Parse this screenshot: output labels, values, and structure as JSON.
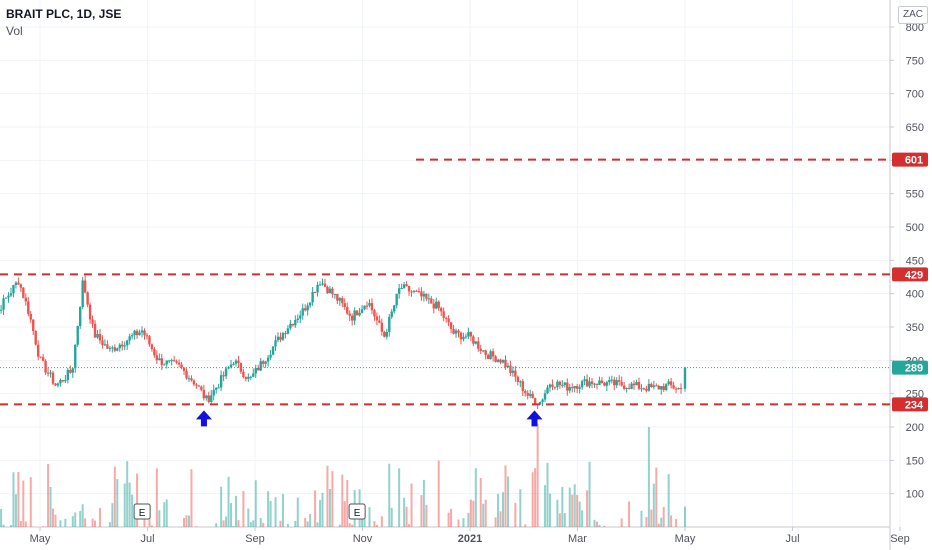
{
  "header": {
    "title": "BRAIT PLC, 1D, JSE",
    "indicator": "Vol",
    "currency": "ZAC"
  },
  "colors": {
    "up": "#26a69a",
    "down": "#ef5350",
    "level_line": "#d32f2f",
    "last_price": "#26a69a",
    "arrow": "#1010e0",
    "grid": "#f0f3fa",
    "axis_text": "#50535e"
  },
  "chart_data": {
    "type": "candlestick",
    "symbol": "BRAIT PLC",
    "interval": "1D",
    "exchange": "JSE",
    "ylim": [
      40,
      820
    ],
    "y_ticks": [
      100,
      150,
      200,
      250,
      300,
      350,
      400,
      450,
      500,
      550,
      600,
      650,
      700,
      750,
      800
    ],
    "x_ticks": [
      "May",
      "Jul",
      "Sep",
      "Nov",
      "2021",
      "Mar",
      "May",
      "Jul",
      "Sep"
    ],
    "levels": [
      {
        "label": "601",
        "value": 601
      },
      {
        "label": "429",
        "value": 429
      },
      {
        "label": "234",
        "value": 234
      }
    ],
    "last_price": {
      "label": "289",
      "value": 289
    },
    "price_path": [
      {
        "month": 4.0,
        "price": 345
      },
      {
        "month": 4.3,
        "price": 385
      },
      {
        "month": 4.6,
        "price": 420
      },
      {
        "month": 4.8,
        "price": 370
      },
      {
        "month": 5.0,
        "price": 300
      },
      {
        "month": 5.3,
        "price": 262
      },
      {
        "month": 5.6,
        "price": 285
      },
      {
        "month": 5.8,
        "price": 420
      },
      {
        "month": 6.0,
        "price": 340
      },
      {
        "month": 6.3,
        "price": 315
      },
      {
        "month": 6.6,
        "price": 330
      },
      {
        "month": 6.9,
        "price": 345
      },
      {
        "month": 7.2,
        "price": 300
      },
      {
        "month": 7.6,
        "price": 290
      },
      {
        "month": 7.9,
        "price": 265
      },
      {
        "month": 8.1,
        "price": 240
      },
      {
        "month": 8.3,
        "price": 262
      },
      {
        "month": 8.6,
        "price": 300
      },
      {
        "month": 8.9,
        "price": 270
      },
      {
        "month": 9.2,
        "price": 305
      },
      {
        "month": 9.6,
        "price": 350
      },
      {
        "month": 9.9,
        "price": 375
      },
      {
        "month": 10.2,
        "price": 420
      },
      {
        "month": 10.5,
        "price": 395
      },
      {
        "month": 10.8,
        "price": 365
      },
      {
        "month": 11.1,
        "price": 390
      },
      {
        "month": 11.4,
        "price": 335
      },
      {
        "month": 11.7,
        "price": 410
      },
      {
        "month": 12.0,
        "price": 400
      },
      {
        "month": 12.4,
        "price": 380
      },
      {
        "month": 12.7,
        "price": 340
      },
      {
        "month": 13.0,
        "price": 335
      },
      {
        "month": 13.3,
        "price": 310
      },
      {
        "month": 13.6,
        "price": 300
      },
      {
        "month": 13.9,
        "price": 268
      },
      {
        "month": 14.1,
        "price": 245
      },
      {
        "month": 14.3,
        "price": 237
      },
      {
        "month": 14.5,
        "price": 268
      },
      {
        "month": 14.8,
        "price": 260
      },
      {
        "month": 15.2,
        "price": 268
      },
      {
        "month": 15.6,
        "price": 265
      },
      {
        "month": 16.0,
        "price": 262
      },
      {
        "month": 16.4,
        "price": 258
      },
      {
        "month": 16.7,
        "price": 262
      },
      {
        "month": 16.95,
        "price": 256
      },
      {
        "month": 17.0,
        "price": 289
      }
    ],
    "volume_spikes": [
      {
        "month": 14.25,
        "value": 205
      },
      {
        "month": 16.35,
        "value": 200
      }
    ],
    "annotations": {
      "arrows": [
        {
          "month": 8.05,
          "price": 234
        },
        {
          "month": 14.2,
          "price": 234
        }
      ],
      "earnings": [
        {
          "label": "E",
          "month": 6.9
        },
        {
          "label": "E",
          "month": 10.9
        }
      ]
    }
  }
}
